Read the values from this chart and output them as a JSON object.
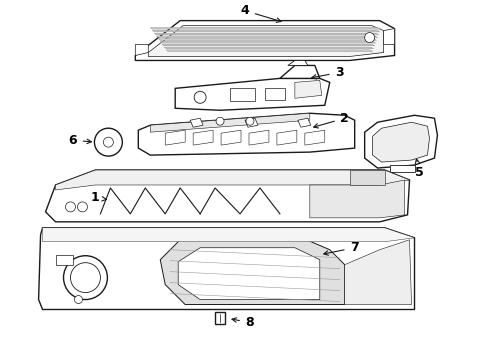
{
  "background_color": "#ffffff",
  "line_color": "#1a1a1a",
  "label_color": "#000000",
  "figsize": [
    4.9,
    3.6
  ],
  "dpi": 100,
  "lw_main": 1.0,
  "lw_thin": 0.6,
  "label_fontsize": 9
}
